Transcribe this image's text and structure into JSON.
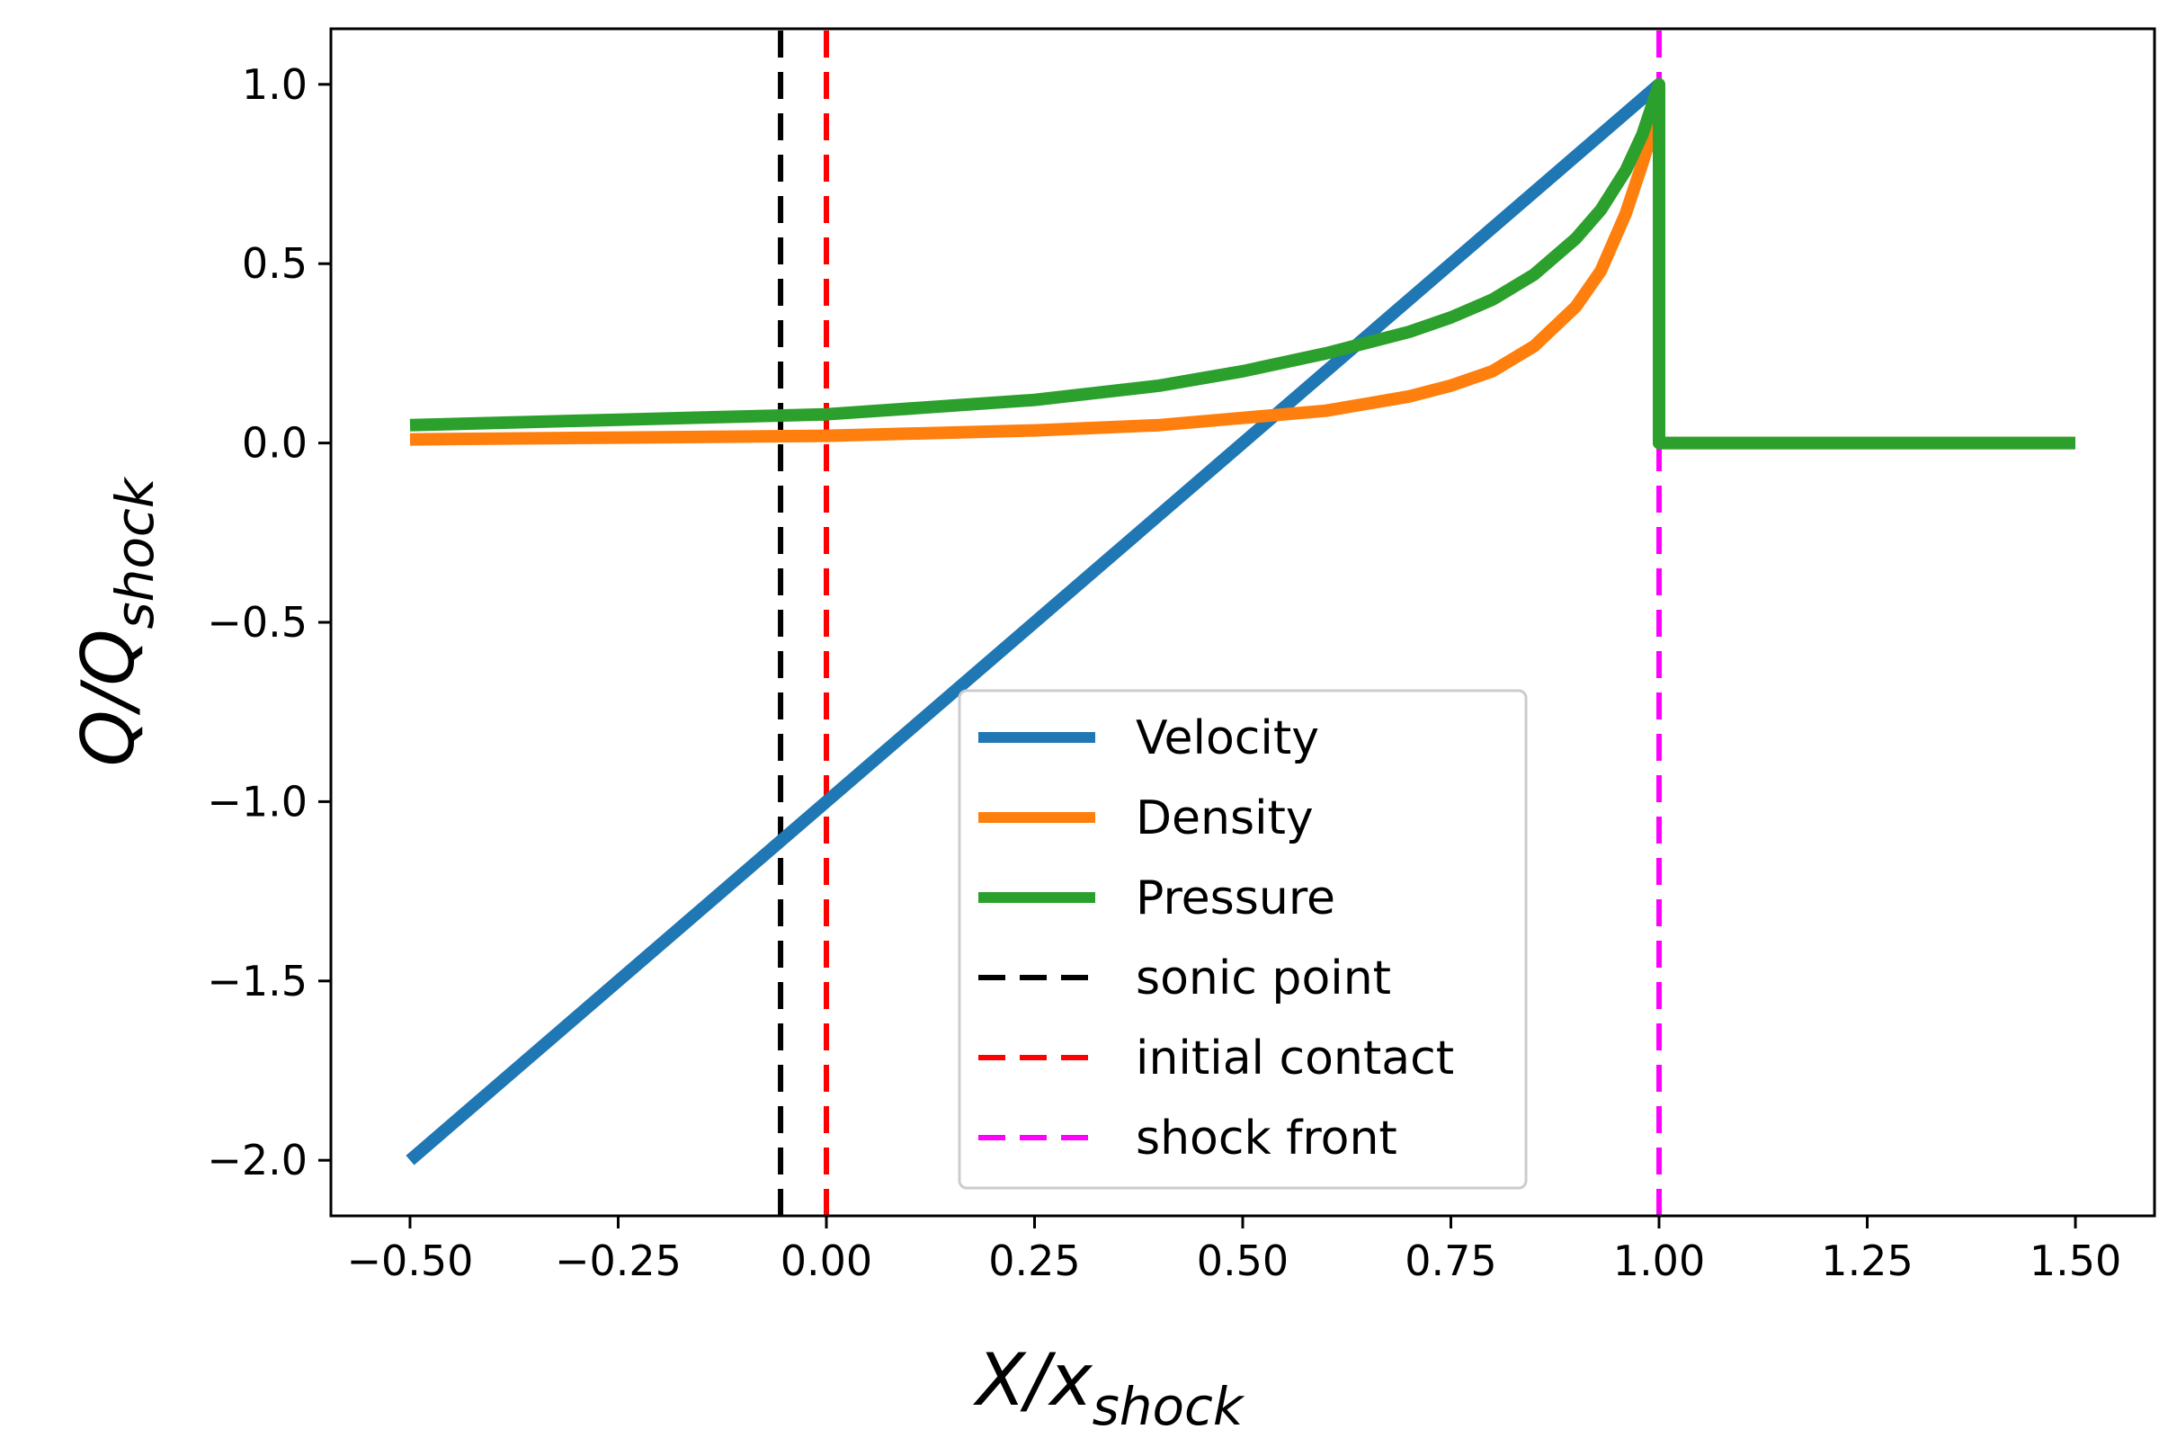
{
  "chart_data": {
    "type": "line",
    "title": "",
    "xlabel": {
      "main": "X/x",
      "sub": "shock"
    },
    "ylabel": {
      "main": "Q/Q",
      "sub": "shock"
    },
    "xlim": [
      -0.595,
      1.595
    ],
    "ylim": [
      -2.155,
      1.155
    ],
    "xticks": [
      -0.5,
      -0.25,
      0.0,
      0.25,
      0.5,
      0.75,
      1.0,
      1.25,
      1.5
    ],
    "xtick_labels": [
      "−0.50",
      "−0.25",
      "0.00",
      "0.25",
      "0.50",
      "0.75",
      "1.00",
      "1.25",
      "1.50"
    ],
    "yticks": [
      1.0,
      0.5,
      0.0,
      -0.5,
      -1.0,
      -1.5,
      -2.0
    ],
    "ytick_labels": [
      "1.0",
      "0.5",
      "0.0",
      "−0.5",
      "−1.0",
      "−1.5",
      "−2.0"
    ],
    "grid": false,
    "legend_position": "lower-center",
    "series": [
      {
        "name": "Velocity",
        "color": "#1f77b4",
        "style": "solid",
        "x": [
          -0.5,
          1.0
        ],
        "y": [
          -2.0,
          1.0
        ]
      },
      {
        "name": "Density",
        "color": "#ff7f0e",
        "style": "solid",
        "x": [
          -0.5,
          -0.25,
          0.0,
          0.25,
          0.4,
          0.5,
          0.6,
          0.7,
          0.75,
          0.8,
          0.85,
          0.9,
          0.93,
          0.96,
          0.98,
          1.0,
          1.0,
          1.5
        ],
        "y": [
          0.01,
          0.015,
          0.02,
          0.035,
          0.05,
          0.07,
          0.09,
          0.13,
          0.16,
          0.2,
          0.27,
          0.38,
          0.48,
          0.64,
          0.78,
          0.93,
          0.0,
          0.0
        ]
      },
      {
        "name": "Pressure",
        "color": "#2ca02c",
        "style": "solid",
        "x": [
          -0.5,
          -0.25,
          0.0,
          0.25,
          0.4,
          0.5,
          0.6,
          0.7,
          0.75,
          0.8,
          0.85,
          0.9,
          0.93,
          0.96,
          0.98,
          1.0,
          1.0,
          1.5
        ],
        "y": [
          0.05,
          0.065,
          0.08,
          0.12,
          0.16,
          0.2,
          0.25,
          0.31,
          0.35,
          0.4,
          0.47,
          0.57,
          0.65,
          0.76,
          0.86,
          1.0,
          0.0,
          0.0
        ]
      },
      {
        "name": "sonic point",
        "color": "#000000",
        "style": "dashed",
        "x": [
          -0.055,
          -0.055
        ],
        "y": [
          -2.155,
          1.155
        ]
      },
      {
        "name": "initial contact",
        "color": "#ff0000",
        "style": "dashed",
        "x": [
          0.0,
          0.0
        ],
        "y": [
          -2.155,
          1.155
        ]
      },
      {
        "name": "shock front",
        "color": "#ff00ff",
        "style": "dashed",
        "x": [
          1.0,
          1.0
        ],
        "y": [
          -2.155,
          1.155
        ]
      }
    ]
  }
}
